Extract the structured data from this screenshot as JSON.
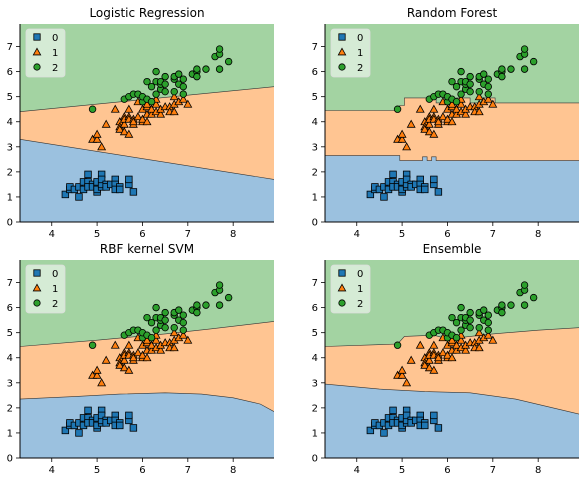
{
  "colors": {
    "region_0": "#9bc1df",
    "region_1": "#ffc592",
    "region_2": "#a3d3a2",
    "marker_0": "#1f77b4",
    "marker_1": "#ff7f0e",
    "marker_2": "#2ca02c",
    "axis": "#000000"
  },
  "chart_data": [
    {
      "type": "scatter",
      "title": "Logistic Regression",
      "xlim": [
        3.3,
        8.9
      ],
      "ylim": [
        0,
        7.9
      ],
      "xticks": [
        4,
        5,
        6,
        7,
        8
      ],
      "yticks": [
        0,
        1,
        2,
        3,
        4,
        5,
        6,
        7
      ],
      "legend": {
        "position": "top-left",
        "labels": [
          "0",
          "1",
          "2"
        ],
        "markers": [
          "square",
          "triangle",
          "circle"
        ]
      },
      "boundaries": {
        "b01": [
          [
            3.3,
            3.3
          ],
          [
            8.9,
            1.7
          ]
        ],
        "b12": [
          [
            3.3,
            4.4
          ],
          [
            8.9,
            5.4
          ]
        ]
      }
    },
    {
      "type": "scatter",
      "title": "Random Forest",
      "xlim": [
        3.3,
        8.9
      ],
      "ylim": [
        0,
        7.9
      ],
      "xticks": [
        4,
        5,
        6,
        7,
        8
      ],
      "yticks": [
        0,
        1,
        2,
        3,
        4,
        5,
        6,
        7
      ],
      "legend": {
        "position": "top-left",
        "labels": [
          "0",
          "1",
          "2"
        ],
        "markers": [
          "square",
          "triangle",
          "circle"
        ]
      },
      "boundaries": {
        "b01": [
          [
            3.3,
            2.65
          ],
          [
            4.95,
            2.65
          ],
          [
            4.95,
            2.45
          ],
          [
            5.45,
            2.45
          ],
          [
            5.45,
            2.6
          ],
          [
            5.55,
            2.6
          ],
          [
            5.55,
            2.45
          ],
          [
            5.65,
            2.45
          ],
          [
            5.65,
            2.6
          ],
          [
            5.75,
            2.6
          ],
          [
            5.75,
            2.45
          ],
          [
            8.9,
            2.45
          ]
        ],
        "b12": [
          [
            3.3,
            4.45
          ],
          [
            4.95,
            4.45
          ],
          [
            4.95,
            4.65
          ],
          [
            5.05,
            4.65
          ],
          [
            5.05,
            4.95
          ],
          [
            5.75,
            4.95
          ],
          [
            5.75,
            4.75
          ],
          [
            6.2,
            4.75
          ],
          [
            6.2,
            4.95
          ],
          [
            6.5,
            4.95
          ],
          [
            6.5,
            4.75
          ],
          [
            6.75,
            4.75
          ],
          [
            6.75,
            4.95
          ],
          [
            7.05,
            4.95
          ],
          [
            7.05,
            4.75
          ],
          [
            8.9,
            4.75
          ]
        ]
      }
    },
    {
      "type": "scatter",
      "title": "RBF kernel SVM",
      "xlim": [
        3.3,
        8.9
      ],
      "ylim": [
        0,
        7.9
      ],
      "xticks": [
        4,
        5,
        6,
        7,
        8
      ],
      "yticks": [
        0,
        1,
        2,
        3,
        4,
        5,
        6,
        7
      ],
      "legend": {
        "position": "top-left",
        "labels": [
          "0",
          "1",
          "2"
        ],
        "markers": [
          "square",
          "triangle",
          "circle"
        ]
      },
      "boundaries": {
        "b01": [
          [
            3.3,
            2.35
          ],
          [
            4.5,
            2.45
          ],
          [
            5.5,
            2.55
          ],
          [
            6.5,
            2.6
          ],
          [
            7.3,
            2.55
          ],
          [
            8.0,
            2.4
          ],
          [
            8.6,
            2.15
          ],
          [
            8.9,
            1.85
          ]
        ],
        "b12": [
          [
            3.3,
            4.45
          ],
          [
            5.0,
            4.7
          ],
          [
            6.5,
            4.95
          ],
          [
            7.5,
            5.15
          ],
          [
            8.9,
            5.45
          ]
        ]
      }
    },
    {
      "type": "scatter",
      "title": "Ensemble",
      "xlim": [
        3.3,
        8.9
      ],
      "ylim": [
        0,
        7.9
      ],
      "xticks": [
        4,
        5,
        6,
        7,
        8
      ],
      "yticks": [
        0,
        1,
        2,
        3,
        4,
        5,
        6,
        7
      ],
      "legend": {
        "position": "top-left",
        "labels": [
          "0",
          "1",
          "2"
        ],
        "markers": [
          "square",
          "triangle",
          "circle"
        ]
      },
      "boundaries": {
        "b01": [
          [
            3.3,
            2.95
          ],
          [
            4.5,
            2.75
          ],
          [
            5.5,
            2.65
          ],
          [
            6.5,
            2.6
          ],
          [
            7.5,
            2.35
          ],
          [
            8.2,
            2.05
          ],
          [
            8.9,
            1.75
          ]
        ],
        "b12": [
          [
            3.3,
            4.45
          ],
          [
            4.9,
            4.55
          ],
          [
            5.05,
            4.85
          ],
          [
            5.7,
            4.9
          ],
          [
            6.0,
            4.75
          ],
          [
            6.5,
            4.85
          ],
          [
            7.0,
            4.95
          ],
          [
            8.0,
            5.1
          ],
          [
            8.9,
            5.2
          ]
        ]
      }
    }
  ],
  "points": {
    "class_0": [
      [
        4.3,
        1.1
      ],
      [
        4.4,
        1.3
      ],
      [
        4.4,
        1.4
      ],
      [
        4.5,
        1.3
      ],
      [
        4.6,
        1.4
      ],
      [
        4.6,
        1.0
      ],
      [
        4.7,
        1.3
      ],
      [
        4.7,
        1.6
      ],
      [
        4.8,
        1.6
      ],
      [
        4.8,
        1.4
      ],
      [
        4.8,
        1.9
      ],
      [
        4.9,
        1.5
      ],
      [
        4.9,
        1.4
      ],
      [
        5.0,
        1.4
      ],
      [
        5.0,
        1.5
      ],
      [
        5.0,
        1.6
      ],
      [
        5.0,
        1.2
      ],
      [
        5.0,
        1.3
      ],
      [
        5.1,
        1.4
      ],
      [
        5.1,
        1.5
      ],
      [
        5.1,
        1.9
      ],
      [
        5.1,
        1.7
      ],
      [
        5.2,
        1.5
      ],
      [
        5.2,
        1.4
      ],
      [
        5.3,
        1.5
      ],
      [
        5.4,
        1.7
      ],
      [
        5.4,
        1.5
      ],
      [
        5.4,
        1.3
      ],
      [
        5.5,
        1.4
      ],
      [
        5.5,
        1.3
      ],
      [
        5.7,
        1.5
      ],
      [
        5.7,
        1.7
      ],
      [
        5.8,
        1.2
      ]
    ],
    "class_1": [
      [
        4.9,
        3.3
      ],
      [
        5.0,
        3.3
      ],
      [
        5.0,
        3.5
      ],
      [
        5.1,
        3.0
      ],
      [
        5.2,
        3.9
      ],
      [
        5.4,
        4.5
      ],
      [
        5.5,
        4.0
      ],
      [
        5.5,
        3.8
      ],
      [
        5.5,
        3.7
      ],
      [
        5.6,
        3.6
      ],
      [
        5.6,
        4.2
      ],
      [
        5.6,
        3.9
      ],
      [
        5.6,
        4.1
      ],
      [
        5.7,
        3.5
      ],
      [
        5.7,
        4.2
      ],
      [
        5.7,
        4.1
      ],
      [
        5.7,
        4.5
      ],
      [
        5.8,
        3.9
      ],
      [
        5.8,
        4.1
      ],
      [
        5.8,
        4.0
      ],
      [
        5.9,
        4.2
      ],
      [
        5.9,
        4.8
      ],
      [
        6.0,
        4.0
      ],
      [
        6.0,
        4.5
      ],
      [
        6.0,
        4.1
      ],
      [
        6.1,
        4.0
      ],
      [
        6.1,
        4.6
      ],
      [
        6.1,
        4.7
      ],
      [
        6.1,
        4.3
      ],
      [
        6.2,
        4.3
      ],
      [
        6.2,
        4.5
      ],
      [
        6.3,
        4.4
      ],
      [
        6.3,
        4.7
      ],
      [
        6.3,
        4.9
      ],
      [
        6.4,
        4.3
      ],
      [
        6.4,
        4.5
      ],
      [
        6.5,
        4.6
      ],
      [
        6.6,
        4.6
      ],
      [
        6.6,
        4.4
      ],
      [
        6.7,
        4.4
      ],
      [
        6.7,
        4.7
      ],
      [
        6.7,
        5.0
      ],
      [
        6.8,
        4.8
      ],
      [
        6.9,
        4.9
      ],
      [
        7.0,
        4.7
      ]
    ],
    "class_2": [
      [
        4.9,
        4.5
      ],
      [
        5.6,
        4.9
      ],
      [
        5.7,
        5.0
      ],
      [
        5.8,
        5.1
      ],
      [
        5.9,
        5.1
      ],
      [
        6.0,
        4.8
      ],
      [
        6.0,
        5.0
      ],
      [
        6.1,
        4.9
      ],
      [
        6.1,
        5.6
      ],
      [
        6.2,
        4.8
      ],
      [
        6.2,
        5.4
      ],
      [
        6.3,
        5.6
      ],
      [
        6.3,
        5.1
      ],
      [
        6.3,
        6.0
      ],
      [
        6.4,
        5.3
      ],
      [
        6.4,
        5.5
      ],
      [
        6.4,
        5.6
      ],
      [
        6.5,
        5.2
      ],
      [
        6.5,
        5.8
      ],
      [
        6.5,
        5.5
      ],
      [
        6.7,
        5.7
      ],
      [
        6.7,
        5.8
      ],
      [
        6.7,
        5.2
      ],
      [
        6.8,
        5.5
      ],
      [
        6.8,
        5.9
      ],
      [
        6.9,
        5.1
      ],
      [
        6.9,
        5.4
      ],
      [
        6.9,
        5.7
      ],
      [
        7.1,
        5.9
      ],
      [
        7.2,
        6.0
      ],
      [
        7.2,
        5.8
      ],
      [
        7.2,
        6.1
      ],
      [
        7.4,
        6.1
      ],
      [
        7.6,
        6.6
      ],
      [
        7.7,
        6.7
      ],
      [
        7.7,
        6.9
      ],
      [
        7.7,
        6.1
      ],
      [
        7.9,
        6.4
      ]
    ]
  }
}
